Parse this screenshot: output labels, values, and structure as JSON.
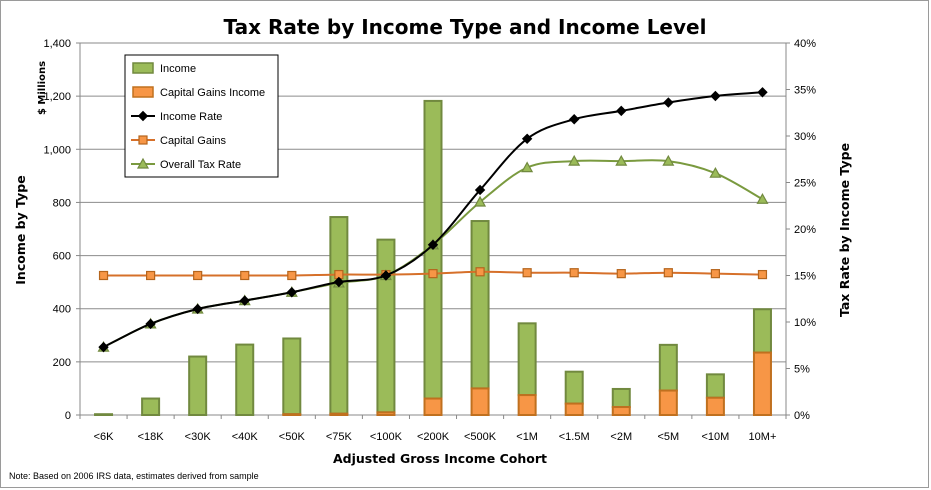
{
  "chart_data": {
    "type": "bar",
    "title": "Tax Rate by Income Type and Income Level",
    "xlabel": "Adjusted Gross Income Cohort",
    "ylabel": "Income by Type",
    "ylabel_unit": "$ Millions",
    "y2label": "Tax Rate by Income Type",
    "ylim": [
      0,
      1400
    ],
    "y2lim": [
      0,
      0.4
    ],
    "yticks": [
      "0",
      "200",
      "400",
      "600",
      "800",
      "1,000",
      "1,200",
      "1,400"
    ],
    "y2ticks": [
      "0%",
      "5%",
      "10%",
      "15%",
      "20%",
      "25%",
      "30%",
      "35%",
      "40%"
    ],
    "grid": true,
    "legend_position": "top-left",
    "categories": [
      "<6K",
      "<18K",
      "<30K",
      "<40K",
      "<50K",
      "<75K",
      "<100K",
      "<200K",
      "<500K",
      "<1M",
      "<1.5M",
      "<2M",
      "<5M",
      "<10M",
      "10M+"
    ],
    "series": [
      {
        "name": "Income",
        "kind": "bar",
        "color": "#9bbb59",
        "stroke": "#71893f",
        "values": [
          3,
          62,
          220,
          265,
          285,
          740,
          650,
          1120,
          630,
          270,
          120,
          68,
          172,
          88,
          163
        ]
      },
      {
        "name": "Capital Gains  Income",
        "kind": "bar",
        "color": "#f79646",
        "stroke": "#c0701f",
        "values": [
          0,
          0,
          0,
          0,
          3,
          5,
          10,
          62,
          100,
          75,
          43,
          30,
          92,
          65,
          235
        ]
      },
      {
        "name": "Income Rate",
        "kind": "line",
        "axis": "y2",
        "color": "#000000",
        "marker": "diamond",
        "values": [
          0.073,
          0.098,
          0.114,
          0.123,
          0.132,
          0.143,
          0.15,
          0.183,
          0.242,
          0.297,
          0.318,
          0.327,
          0.336,
          0.343,
          0.347
        ]
      },
      {
        "name": "Capital Gains",
        "kind": "line",
        "axis": "y2",
        "color": "#f79646",
        "marker": "square",
        "values": [
          0.15,
          0.15,
          0.15,
          0.15,
          0.15,
          0.151,
          0.151,
          0.152,
          0.154,
          0.153,
          0.153,
          0.152,
          0.153,
          0.152,
          0.151
        ]
      },
      {
        "name": "Overall Tax Rate",
        "kind": "line",
        "axis": "y2",
        "color": "#9bbb59",
        "marker": "triangle",
        "values": [
          0.073,
          0.098,
          0.114,
          0.123,
          0.132,
          0.142,
          0.15,
          0.183,
          0.229,
          0.266,
          0.273,
          0.273,
          0.273,
          0.26,
          0.232
        ]
      }
    ],
    "note": "Note: Based on 2006 IRS data, estimates derived from sample"
  }
}
